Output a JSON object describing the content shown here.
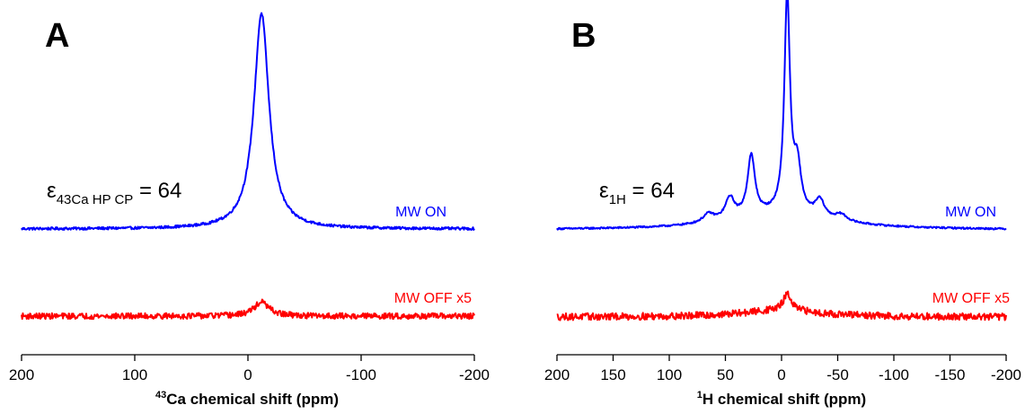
{
  "chart_data": [
    {
      "type": "line",
      "panel_label": "A",
      "xlabel_sup": "43",
      "xlabel_main": "Ca chemical shift (ppm)",
      "xlim": [
        200,
        -200
      ],
      "xticks": [
        200,
        100,
        0,
        -100,
        -200
      ],
      "xtick_labels": [
        "200",
        "100",
        "0",
        "-100",
        "-200"
      ],
      "annotation": {
        "symbol": "ε",
        "sub": "43Ca HP CP",
        "value": " = 64"
      },
      "series": [
        {
          "name": "MW ON",
          "color": "#0000ff",
          "peaks": [
            {
              "center": -12,
              "height": 1.0,
              "width": 8
            }
          ],
          "noise": 0.006
        },
        {
          "name": "MW OFF x5",
          "color": "#ff0000",
          "peaks": [
            {
              "center": -12,
              "height": 0.12,
              "width": 8
            }
          ],
          "noise": 0.025
        }
      ]
    },
    {
      "type": "line",
      "panel_label": "B",
      "xlabel_sup": "1",
      "xlabel_main": "H chemical shift (ppm)",
      "xlim": [
        200,
        -200
      ],
      "xticks": [
        200,
        150,
        100,
        50,
        0,
        -50,
        -100,
        -150,
        -200
      ],
      "xtick_labels": [
        "200",
        "150",
        "100",
        "50",
        "0",
        "-50",
        "-100",
        "-150",
        "-200"
      ],
      "annotation": {
        "symbol": "ε",
        "sub": "1H",
        "value": " = 64"
      },
      "series": [
        {
          "name": "MW ON",
          "color": "#0000ff",
          "peaks": [
            {
              "center": -5,
              "height": 1.0,
              "width": 3
            },
            {
              "center": 27,
              "height": 0.28,
              "width": 4
            },
            {
              "center": -14,
              "height": 0.21,
              "width": 4
            },
            {
              "center": 46,
              "height": 0.1,
              "width": 5
            },
            {
              "center": -34,
              "height": 0.08,
              "width": 5
            },
            {
              "center": 65,
              "height": 0.04,
              "width": 6
            },
            {
              "center": -53,
              "height": 0.03,
              "width": 6
            },
            {
              "center": 0,
              "height": 0.07,
              "width": 55
            }
          ],
          "noise": 0.004
        },
        {
          "name": "MW OFF x5",
          "color": "#ff0000",
          "peaks": [
            {
              "center": -5,
              "height": 0.14,
              "width": 4
            },
            {
              "center": 0,
              "height": 0.06,
              "width": 40
            }
          ],
          "noise": 0.03
        }
      ]
    }
  ]
}
